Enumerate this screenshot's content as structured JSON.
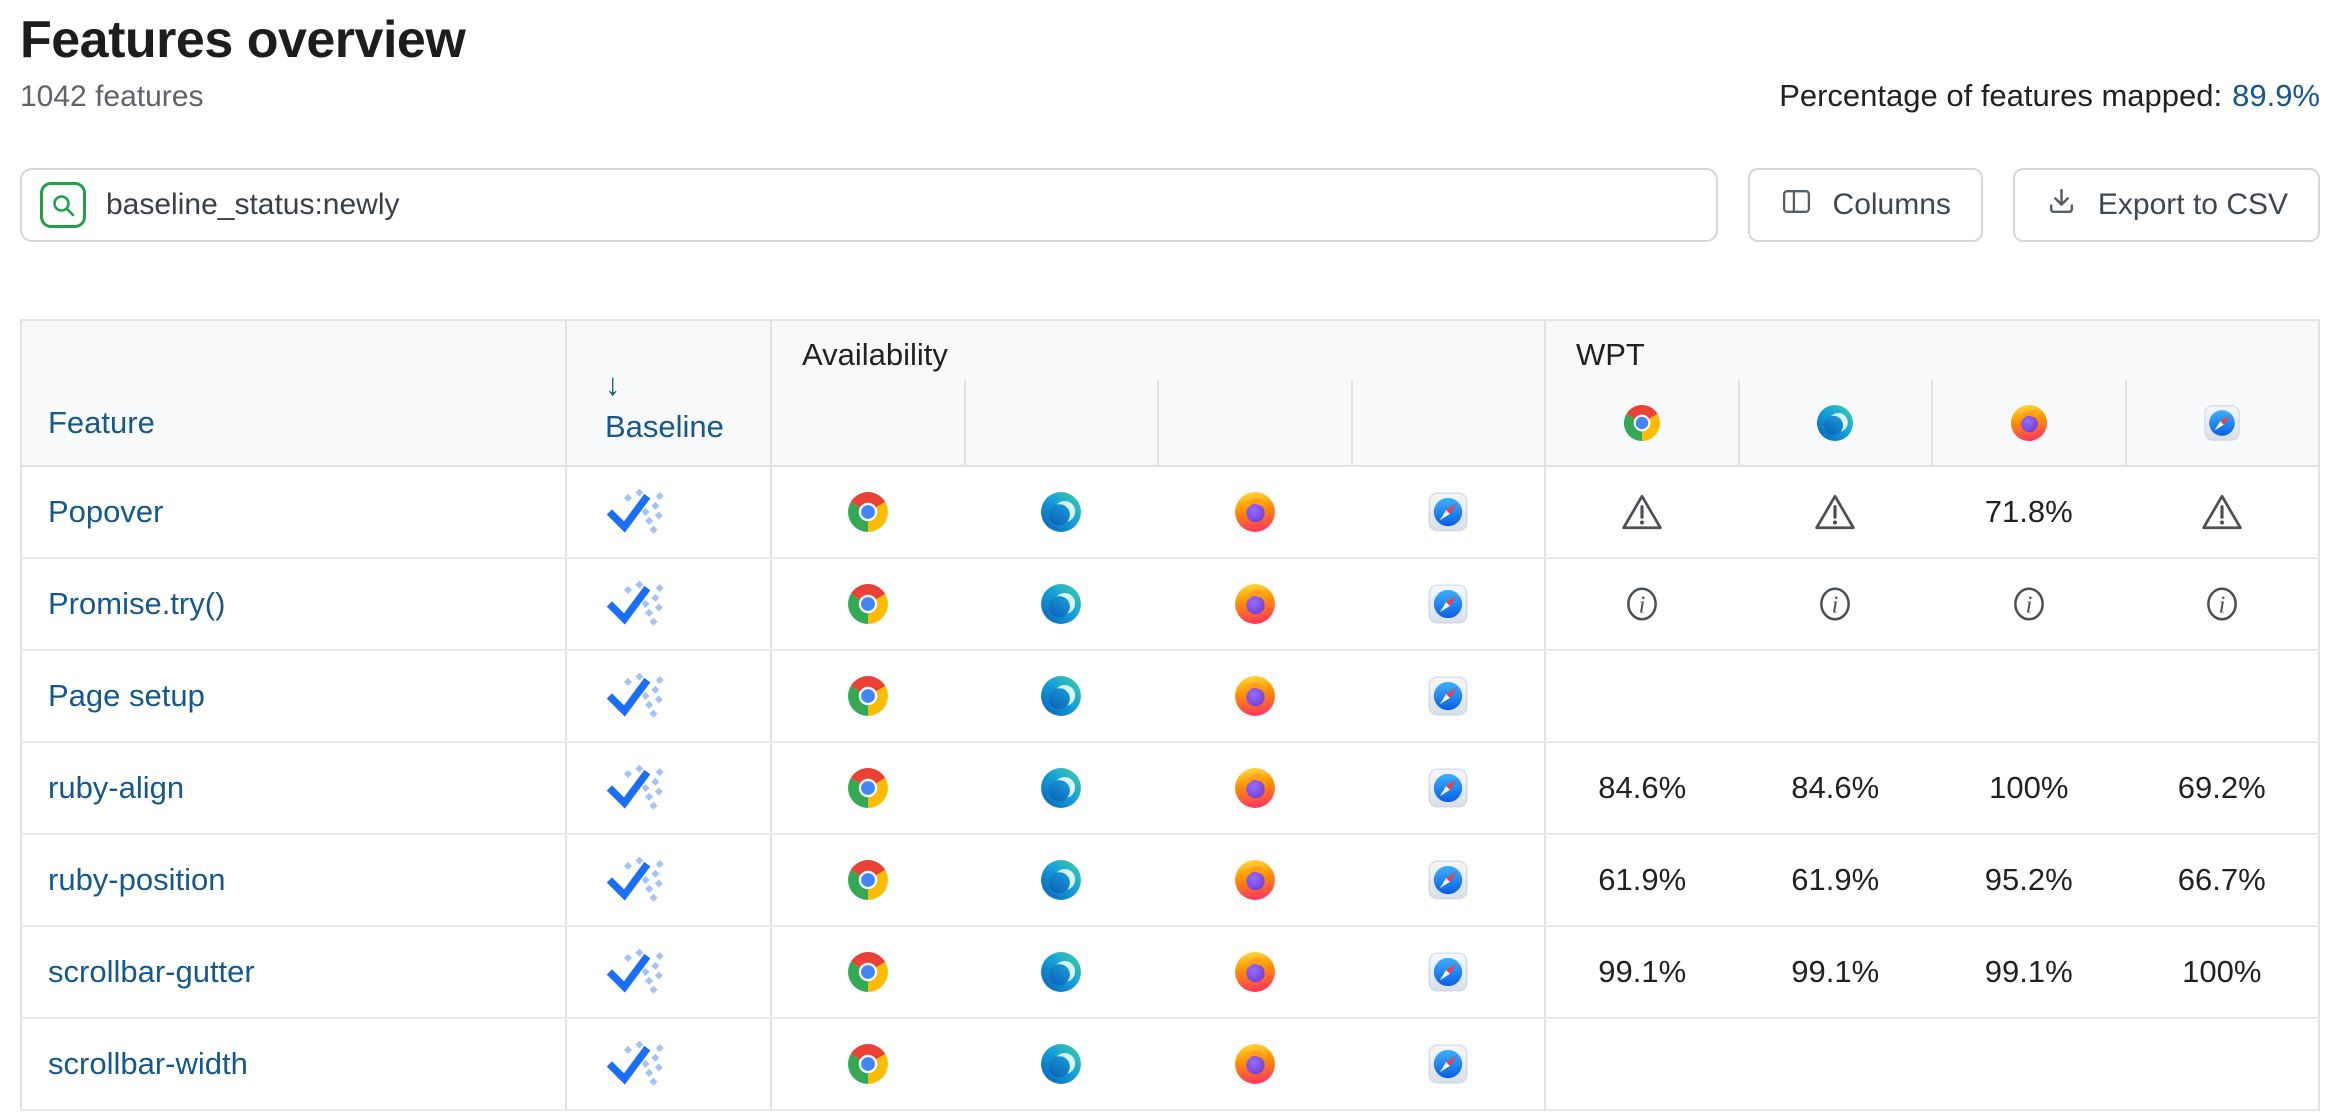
{
  "page": {
    "title": "Features overview",
    "subtitle": "1042 features",
    "mapped_label": "Percentage of features mapped:",
    "mapped_value": "89.9%"
  },
  "toolbar": {
    "search_value": "baseline_status:newly",
    "search_icon": "magnifier-in-green-chip",
    "columns_label": "Columns",
    "columns_icon": "columns-icon",
    "export_label": "Export to CSV",
    "export_icon": "download-icon"
  },
  "table": {
    "feature_header": "Feature",
    "baseline_header": "Baseline",
    "baseline_sort_icon": "↓",
    "availability_header": "Availability",
    "wpt_header": "WPT",
    "browsers": [
      "chrome",
      "edge",
      "firefox",
      "safari"
    ],
    "rows": [
      {
        "feature": "Popover",
        "baseline": "newly",
        "availability": [
          "chrome",
          "edge",
          "firefox",
          "safari"
        ],
        "wpt": [
          {
            "type": "warning"
          },
          {
            "type": "warning"
          },
          {
            "type": "value",
            "value": "71.8%"
          },
          {
            "type": "warning"
          }
        ]
      },
      {
        "feature": "Promise.try()",
        "baseline": "newly",
        "availability": [
          "chrome",
          "edge",
          "firefox",
          "safari"
        ],
        "wpt": [
          {
            "type": "info"
          },
          {
            "type": "info"
          },
          {
            "type": "info"
          },
          {
            "type": "info"
          }
        ]
      },
      {
        "feature": "Page setup",
        "baseline": "newly",
        "availability": [
          "chrome",
          "edge",
          "firefox",
          "safari"
        ],
        "wpt": [
          {
            "type": "empty"
          },
          {
            "type": "empty"
          },
          {
            "type": "empty"
          },
          {
            "type": "empty"
          }
        ]
      },
      {
        "feature": "ruby-align",
        "baseline": "newly",
        "availability": [
          "chrome",
          "edge",
          "firefox",
          "safari"
        ],
        "wpt": [
          {
            "type": "value",
            "value": "84.6%"
          },
          {
            "type": "value",
            "value": "84.6%"
          },
          {
            "type": "value",
            "value": "100%"
          },
          {
            "type": "value",
            "value": "69.2%"
          }
        ]
      },
      {
        "feature": "ruby-position",
        "baseline": "newly",
        "availability": [
          "chrome",
          "edge",
          "firefox",
          "safari"
        ],
        "wpt": [
          {
            "type": "value",
            "value": "61.9%"
          },
          {
            "type": "value",
            "value": "61.9%"
          },
          {
            "type": "value",
            "value": "95.2%"
          },
          {
            "type": "value",
            "value": "66.7%"
          }
        ]
      },
      {
        "feature": "scrollbar-gutter",
        "baseline": "newly",
        "availability": [
          "chrome",
          "edge",
          "firefox",
          "safari"
        ],
        "wpt": [
          {
            "type": "value",
            "value": "99.1%"
          },
          {
            "type": "value",
            "value": "99.1%"
          },
          {
            "type": "value",
            "value": "99.1%"
          },
          {
            "type": "value",
            "value": "100%"
          }
        ]
      },
      {
        "feature": "scrollbar-width",
        "baseline": "newly",
        "availability": [
          "chrome",
          "edge",
          "firefox",
          "safari"
        ],
        "wpt": [
          {
            "type": "empty"
          },
          {
            "type": "empty"
          },
          {
            "type": "empty"
          },
          {
            "type": "empty"
          }
        ]
      }
    ]
  },
  "colors": {
    "link_blue": "#15598c",
    "search_green": "#1fa04b",
    "baseline_check_blue": "#1a6ef5",
    "baseline_dot_blue": "#a5c3f5",
    "header_bg": "#f8f9fa",
    "border_gray": "#e0e2e6",
    "icon_gray": "#4b5056",
    "text_dark": "#1f2123",
    "text_gray": "#5f6368"
  }
}
